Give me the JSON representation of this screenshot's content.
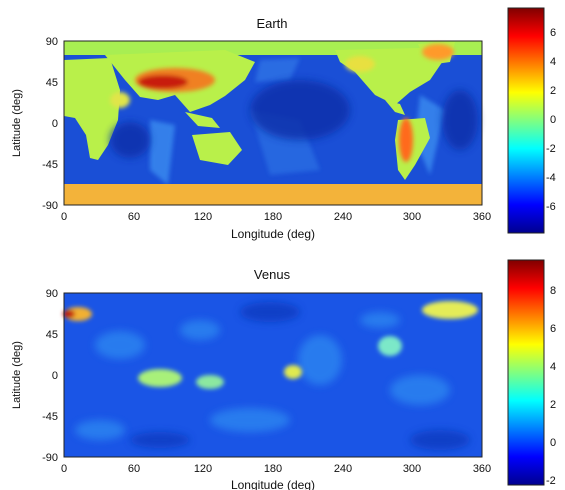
{
  "chart_data": [
    {
      "type": "heatmap",
      "title": "Earth",
      "xlabel": "Longitude (deg)",
      "ylabel": "Latitude (deg)",
      "xlim": [
        0,
        360
      ],
      "ylim": [
        -90,
        90
      ],
      "xticks": [
        "0",
        "60",
        "120",
        "180",
        "240",
        "300",
        "360"
      ],
      "yticks": [
        "90",
        "45",
        "0",
        "-45",
        "-90"
      ],
      "colorbar": {
        "range": [
          -8,
          8
        ],
        "ticks": [
          "6",
          "4",
          "2",
          "0",
          "-2",
          "-4",
          "-6"
        ],
        "colormap": "jet"
      },
      "features": [
        {
          "lon": 100,
          "lat": 36,
          "value": 7
        },
        {
          "lon": 290,
          "lat": -15,
          "value": 5
        },
        {
          "lon": 320,
          "lat": 72,
          "value": 4
        },
        {
          "lon": 180,
          "lat": -80,
          "value": 4
        },
        {
          "lon": 200,
          "lat": 5,
          "value": -6
        },
        {
          "lon": 320,
          "lat": 0,
          "value": -5
        },
        {
          "lon": 80,
          "lat": -25,
          "value": -5
        }
      ]
    },
    {
      "type": "heatmap",
      "title": "Venus",
      "xlabel": "Longitude (deg)",
      "ylabel": "Latitude (deg)",
      "xlim": [
        0,
        360
      ],
      "ylim": [
        -90,
        90
      ],
      "xticks": [
        "0",
        "60",
        "120",
        "180",
        "240",
        "300",
        "360"
      ],
      "yticks": [
        "90",
        "45",
        "0",
        "-45",
        "-90"
      ],
      "colorbar": {
        "range": [
          -2.5,
          9.5
        ],
        "ticks": [
          "8",
          "6",
          "4",
          "2",
          "0",
          "-2"
        ],
        "colormap": "jet"
      },
      "features": [
        {
          "lon": 5,
          "lat": 65,
          "value": 7
        },
        {
          "lon": 335,
          "lat": 65,
          "value": 3
        },
        {
          "lon": 100,
          "lat": -3,
          "value": 3
        },
        {
          "lon": 200,
          "lat": 5,
          "value": 3
        },
        {
          "lon": 280,
          "lat": 27,
          "value": 2.5
        },
        {
          "lon": 140,
          "lat": -10,
          "value": 2
        }
      ]
    }
  ]
}
